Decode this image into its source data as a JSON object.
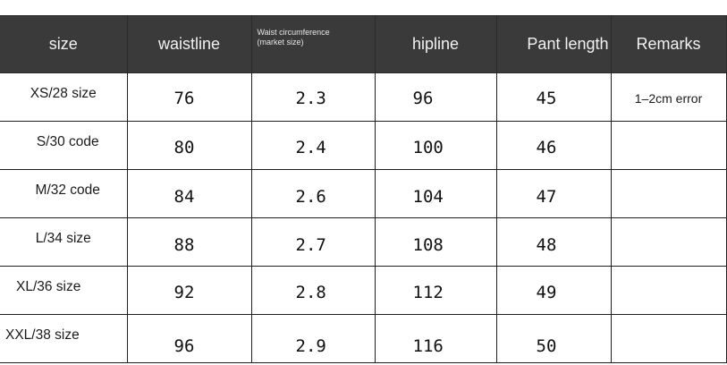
{
  "headers": {
    "size": "size",
    "waistline": "waistline",
    "waist_circumference_line1": "Waist circumference",
    "waist_circumference_line2": "(market size)",
    "hipline": "hipline",
    "pant_length": "Pant length",
    "remarks": "Remarks"
  },
  "rows": [
    {
      "size": "XS/28 size",
      "waistline": "76",
      "waist_circumference": "2.3",
      "hipline": "96",
      "pant_length": "45",
      "remarks": "1–2cm error"
    },
    {
      "size": "S/30 code",
      "waistline": "80",
      "waist_circumference": "2.4",
      "hipline": "100",
      "pant_length": "46",
      "remarks": ""
    },
    {
      "size": "M/32 code",
      "waistline": "84",
      "waist_circumference": "2.6",
      "hipline": "104",
      "pant_length": "47",
      "remarks": ""
    },
    {
      "size": "L/34 size",
      "waistline": "88",
      "waist_circumference": "2.7",
      "hipline": "108",
      "pant_length": "48",
      "remarks": ""
    },
    {
      "size": "XL/36 size",
      "waistline": "92",
      "waist_circumference": "2.8",
      "hipline": "112",
      "pant_length": "49",
      "remarks": ""
    },
    {
      "size": "XXL/38 size",
      "waistline": "96",
      "waist_circumference": "2.9",
      "hipline": "116",
      "pant_length": "50",
      "remarks": ""
    }
  ],
  "colors": {
    "header_background": "#3a3a3a",
    "header_text": "#f2f2f2",
    "grid_lines": "#1f1f1f",
    "body_background": "#ffffff",
    "body_text": "#111111"
  }
}
